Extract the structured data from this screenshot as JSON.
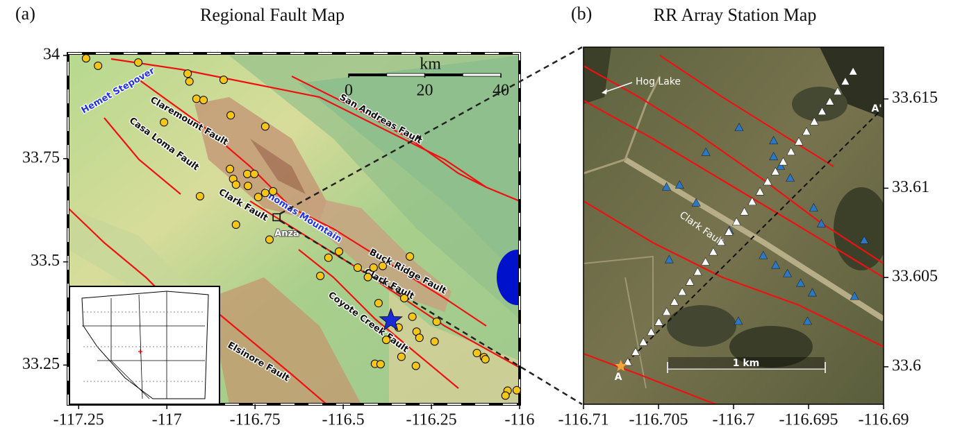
{
  "chart_data": [
    {
      "type": "map",
      "panel_label": "(a)",
      "title": "Regional Fault Map",
      "xlim": [
        -117.28,
        -116
      ],
      "ylim": [
        33.155,
        34.005
      ],
      "xticks": [
        -117.25,
        -117,
        -116.75,
        -116.5,
        -116.25,
        -116
      ],
      "yticks": [
        33.25,
        33.5,
        33.75,
        34
      ],
      "scale_bar": {
        "ticks": [
          0,
          20,
          40
        ],
        "unit": "km"
      },
      "annotations": [
        "Hemet Stepover",
        "Claremount Fault",
        "Casa Loma Fault",
        "San Andreas Fault",
        "Clark Fault",
        "Thomas Mountain",
        "Anza",
        "Buck Ridge Fault",
        "Clark Fault",
        "Coyote Creek Fault",
        "Elsinore Fault"
      ],
      "events": {
        "color": "#f5c518",
        "lon": [
          -117.229,
          -117.195,
          -117.081,
          -116.941,
          -116.936,
          -116.916,
          -116.896,
          -116.839,
          -117.008,
          -116.819,
          -116.721,
          -116.821,
          -116.812,
          -116.804,
          -116.77,
          -116.772,
          -116.752,
          -116.721,
          -116.699,
          -116.741,
          -116.906,
          -116.804,
          -116.709,
          -116.542,
          -116.512,
          -116.565,
          -116.459,
          -116.43,
          -116.414,
          -116.388,
          -116.311,
          -116.327,
          -116.4,
          -116.304,
          -116.292,
          -116.235,
          -116.343,
          -116.378,
          -116.284,
          -116.241,
          -116.41,
          -116.394,
          -116.335,
          -116.294,
          -116.121,
          -116.101,
          -116.097,
          -116.034,
          -116.008,
          -116.04
        ],
        "lat": [
          33.993,
          33.975,
          33.983,
          33.956,
          33.937,
          33.895,
          33.892,
          33.941,
          33.838,
          33.855,
          33.828,
          33.725,
          33.701,
          33.687,
          33.684,
          33.713,
          33.713,
          33.667,
          33.671,
          33.657,
          33.659,
          33.59,
          33.554,
          33.51,
          33.525,
          33.466,
          33.486,
          33.463,
          33.486,
          33.49,
          33.513,
          33.412,
          33.4,
          33.367,
          33.331,
          33.355,
          33.341,
          33.311,
          33.316,
          33.307,
          33.253,
          33.252,
          33.27,
          33.248,
          33.279,
          33.269,
          33.264,
          33.188,
          33.189,
          33.176
        ]
      },
      "epicenter": {
        "lon": -116.365,
        "lat": 33.358,
        "color": "#1a2bd6"
      },
      "station_array": {
        "lon": -116.689,
        "lat": 33.608
      }
    },
    {
      "type": "map",
      "panel_label": "(b)",
      "title": "RR Array Station Map",
      "xlim": [
        -116.71,
        -116.69
      ],
      "ylim": [
        33.5979,
        33.6179
      ],
      "xticks": [
        -116.71,
        -116.705,
        -116.7,
        -116.695,
        -116.69
      ],
      "yticks": [
        33.6,
        33.605,
        33.61,
        33.615
      ],
      "annotations": [
        "Hog Lake",
        "Clark Fault",
        "A",
        "A'",
        "1 km"
      ],
      "broadband": {
        "color": "#2a78c8",
        "lon": [
          -116.69963,
          -116.70184,
          -116.69733,
          -116.69733,
          -116.69687,
          -116.70447,
          -116.7036,
          -116.70249,
          -116.69622,
          -116.69466,
          -116.70028,
          -116.69415,
          -116.69129,
          -116.70429,
          -116.69802,
          -116.69719,
          -116.69641,
          -116.69553,
          -116.69475,
          -116.69194,
          -116.69968,
          -116.69507
        ],
        "lat": [
          33.61341,
          33.61202,
          33.61267,
          33.61178,
          33.61124,
          33.61008,
          33.61019,
          33.60919,
          33.61058,
          33.60891,
          33.60764,
          33.60802,
          33.60709,
          33.60601,
          33.60624,
          33.6057,
          33.60523,
          33.60469,
          33.60415,
          33.60395,
          33.60256,
          33.60256
        ]
      },
      "nodes": {
        "color": "#ffffff",
        "lon": [
          -116.70705,
          -116.70653,
          -116.70601,
          -116.70549,
          -116.70498,
          -116.70446,
          -116.70394,
          -116.70342,
          -116.70291,
          -116.70239,
          -116.70187,
          -116.70135,
          -116.70083,
          -116.70032,
          -116.6998,
          -116.69928,
          -116.69876,
          -116.69824,
          -116.69773,
          -116.69721,
          -116.69669,
          -116.69617,
          -116.69565,
          -116.69514,
          -116.69462,
          -116.6941,
          -116.69358,
          -116.69306,
          -116.69255,
          -116.69203
        ],
        "lat": [
          33.60027,
          33.60083,
          33.60139,
          33.60195,
          33.60251,
          33.60308,
          33.60364,
          33.6042,
          33.60476,
          33.60532,
          33.60588,
          33.60644,
          33.607,
          33.60756,
          33.60812,
          33.60869,
          33.60925,
          33.60981,
          33.61037,
          33.61093,
          33.61149,
          33.61205,
          33.61261,
          33.61317,
          33.61373,
          33.6143,
          33.61486,
          33.61542,
          33.61598,
          33.61654
        ]
      }
    }
  ]
}
